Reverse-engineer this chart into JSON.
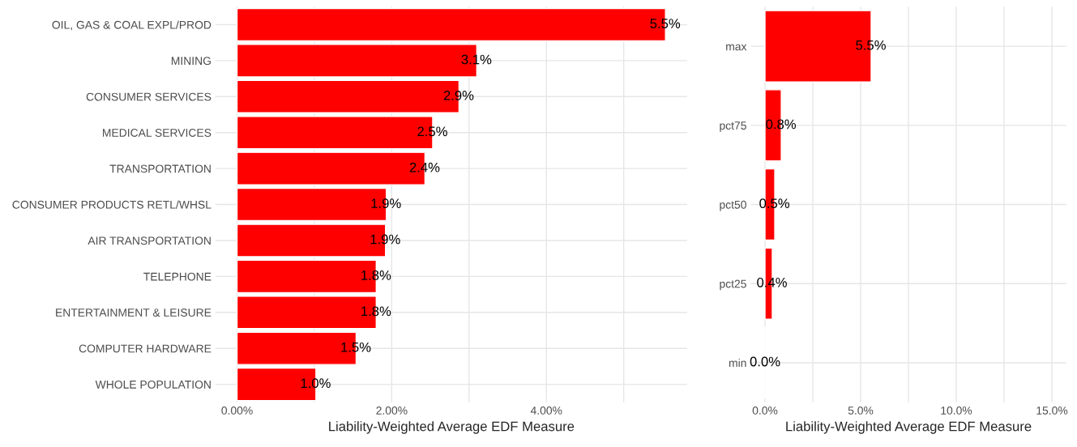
{
  "chart_data": [
    {
      "type": "bar",
      "orientation": "horizontal",
      "xlabel": "Liability-Weighted Average EDF Measure",
      "categories": [
        "OIL, GAS & COAL EXPL/PROD",
        "MINING",
        "CONSUMER SERVICES",
        "MEDICAL SERVICES",
        "TRANSPORTATION",
        "CONSUMER PRODUCTS RETL/WHSL",
        "AIR TRANSPORTATION",
        "TELEPHONE",
        "ENTERTAINMENT & LEISURE",
        "COMPUTER HARDWARE",
        "WHOLE POPULATION"
      ],
      "values": [
        5.54,
        3.1,
        2.87,
        2.53,
        2.43,
        1.93,
        1.92,
        1.8,
        1.8,
        1.54,
        1.02
      ],
      "value_labels": [
        "5.5%",
        "3.1%",
        "2.9%",
        "2.5%",
        "2.4%",
        "1.9%",
        "1.9%",
        "1.8%",
        "1.8%",
        "1.5%",
        "1.0%"
      ],
      "color": "#ff0000",
      "xlim": [
        -0.28,
        5.82
      ],
      "xticks": [
        {
          "value": 0,
          "label": "0.00%"
        },
        {
          "value": 1,
          "label": null
        },
        {
          "value": 2,
          "label": "2.00%"
        },
        {
          "value": 3,
          "label": null
        },
        {
          "value": 4,
          "label": "4.00%"
        },
        {
          "value": 5,
          "label": null
        }
      ],
      "grid": true,
      "legend": false
    },
    {
      "type": "bar",
      "orientation": "horizontal",
      "xlabel": "Liability-Weighted Average EDF Measure",
      "categories": [
        "max",
        "pct75",
        "pct50",
        "pct25",
        "min"
      ],
      "values": [
        5.55,
        0.85,
        0.51,
        0.38,
        0.02
      ],
      "value_labels": [
        "5.5%",
        "0.8%",
        "0.5%",
        "0.4%",
        "0.0%"
      ],
      "color": "#ff0000",
      "xlim": [
        -0.75,
        15.75
      ],
      "xticks": [
        {
          "value": 0,
          "label": "0.0%"
        },
        {
          "value": 2.5,
          "label": null
        },
        {
          "value": 5,
          "label": "5.0%"
        },
        {
          "value": 7.5,
          "label": null
        },
        {
          "value": 10,
          "label": "10.0%"
        },
        {
          "value": 12.5,
          "label": null
        },
        {
          "value": 15,
          "label": "15.0%"
        }
      ],
      "grid": true,
      "legend": false
    }
  ]
}
